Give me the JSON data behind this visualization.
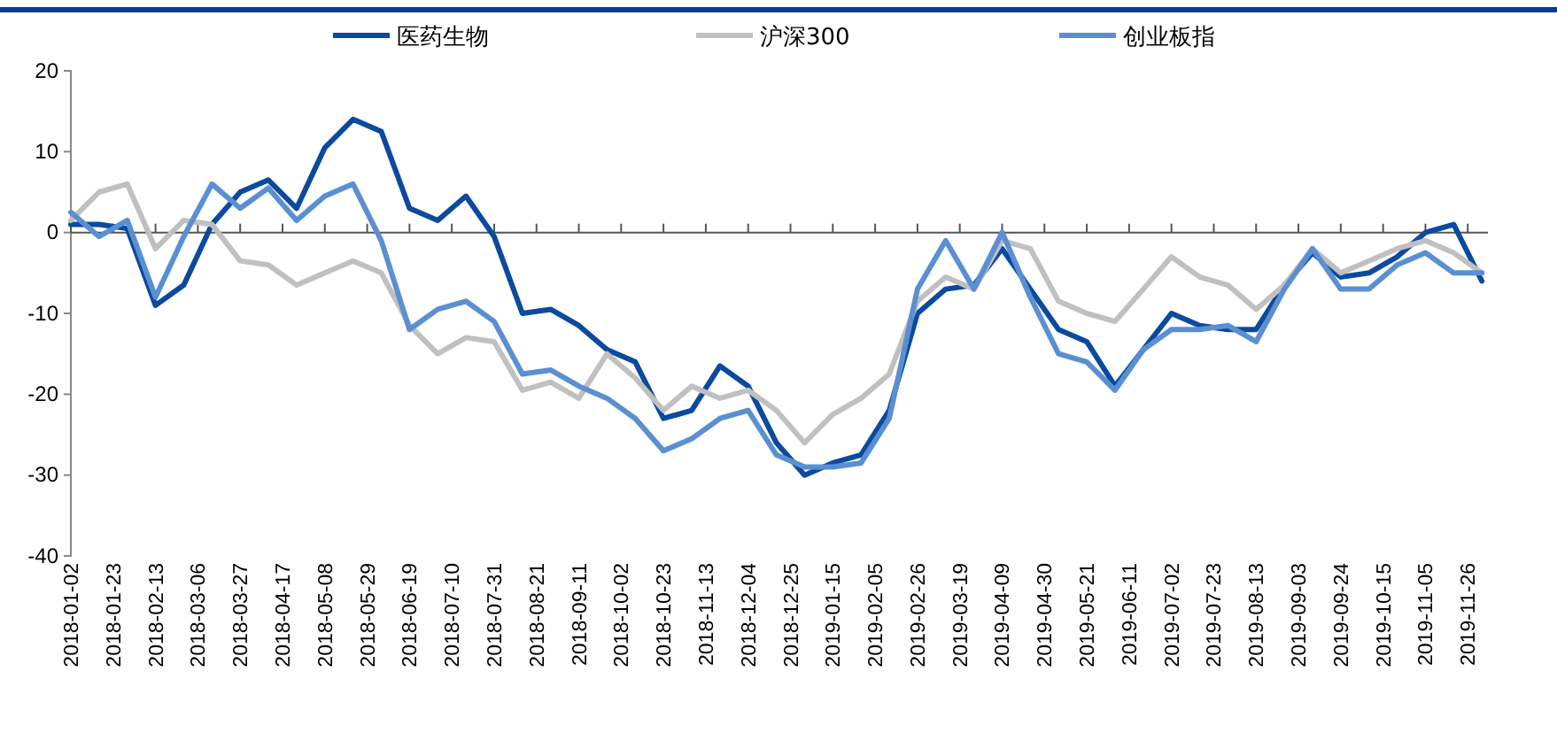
{
  "chart_data": {
    "type": "line",
    "x": [
      "2018-01-02",
      "2018-01-16",
      "2018-01-30",
      "2018-02-13",
      "2018-02-27",
      "2018-03-13",
      "2018-03-27",
      "2018-04-10",
      "2018-04-24",
      "2018-05-08",
      "2018-05-22",
      "2018-06-05",
      "2018-06-19",
      "2018-07-03",
      "2018-07-17",
      "2018-07-31",
      "2018-08-14",
      "2018-08-28",
      "2018-09-11",
      "2018-09-25",
      "2018-10-09",
      "2018-10-23",
      "2018-11-06",
      "2018-11-20",
      "2018-12-04",
      "2018-12-18",
      "2019-01-01",
      "2019-01-15",
      "2019-01-29",
      "2019-02-12",
      "2019-02-26",
      "2019-03-12",
      "2019-03-26",
      "2019-04-09",
      "2019-04-23",
      "2019-05-07",
      "2019-05-21",
      "2019-06-04",
      "2019-06-18",
      "2019-07-02",
      "2019-07-16",
      "2019-07-30",
      "2019-08-13",
      "2019-08-27",
      "2019-09-10",
      "2019-09-24",
      "2019-10-08",
      "2019-10-22",
      "2019-11-05",
      "2019-11-19",
      "2019-12-03"
    ],
    "series": [
      {
        "name": "医药生物",
        "color": "#0b4a9e",
        "values": [
          1,
          1,
          0.5,
          -9,
          -6.5,
          1,
          5,
          6.5,
          3,
          10.5,
          14,
          12.5,
          3,
          1.5,
          4.5,
          -0.5,
          -10,
          -9.5,
          -11.5,
          -14.5,
          -16,
          -23,
          -22,
          -16.5,
          -19,
          -26,
          -30,
          -28.5,
          -27.5,
          -22,
          -10,
          -7,
          -6.5,
          -2,
          -7,
          -12,
          -13.5,
          -19,
          -14.5,
          -10,
          -11.5,
          -12,
          -12,
          -6.5,
          -2.5,
          -5.5,
          -5,
          -3,
          0,
          1,
          -6
        ]
      },
      {
        "name": "沪深300",
        "color": "#c0c0c0",
        "values": [
          1.5,
          5,
          6,
          -2,
          1.5,
          1,
          -3.5,
          -4,
          -6.5,
          -5,
          -3.5,
          -5,
          -11.5,
          -15,
          -13,
          -13.5,
          -19.5,
          -18.5,
          -20.5,
          -15,
          -18,
          -22,
          -19,
          -20.5,
          -19.5,
          -22,
          -26,
          -22.5,
          -20.5,
          -17.5,
          -8.5,
          -5.5,
          -7,
          -1,
          -2,
          -8.5,
          -10,
          -11,
          -7,
          -3,
          -5.5,
          -6.5,
          -9.5,
          -6.5,
          -2,
          -5,
          -3.5,
          -2,
          -1,
          -2.5,
          -5
        ]
      },
      {
        "name": "创业板指",
        "color": "#5a8fd2",
        "values": [
          2.5,
          -0.5,
          1.5,
          -8,
          -0.5,
          6,
          3,
          5.5,
          1.5,
          4.5,
          6,
          -1,
          -12,
          -9.5,
          -8.5,
          -11,
          -17.5,
          -17,
          -19,
          -20.5,
          -23,
          -27,
          -25.5,
          -23,
          -22,
          -27.5,
          -29,
          -29,
          -28.5,
          -23,
          -7,
          -1,
          -7,
          0,
          -8,
          -15,
          -16,
          -19.5,
          -14.5,
          -12,
          -12,
          -11.5,
          -13.5,
          -7,
          -2,
          -7,
          -7,
          -4,
          -2.5,
          -5,
          -5
        ]
      }
    ],
    "xlim": [
      "2018-01-02",
      "2019-12-06"
    ],
    "xticks": [
      "2018-01-02",
      "2018-01-23",
      "2018-02-13",
      "2018-03-06",
      "2018-03-27",
      "2018-04-17",
      "2018-05-08",
      "2018-05-29",
      "2018-06-19",
      "2018-07-10",
      "2018-07-31",
      "2018-08-21",
      "2018-09-11",
      "2018-10-02",
      "2018-10-23",
      "2018-11-13",
      "2018-12-04",
      "2018-12-25",
      "2019-01-15",
      "2019-02-05",
      "2019-02-26",
      "2019-03-19",
      "2019-04-09",
      "2019-04-30",
      "2019-05-21",
      "2019-06-11",
      "2019-07-02",
      "2019-07-23",
      "2019-08-13",
      "2019-09-03",
      "2019-09-24",
      "2019-10-15",
      "2019-11-05",
      "2019-11-26"
    ],
    "ylim": [
      -40,
      20
    ],
    "yticks": [
      -40,
      -30,
      -20,
      -10,
      0,
      10,
      20
    ],
    "legend": "top",
    "marker": "none",
    "line_style": "solid"
  }
}
